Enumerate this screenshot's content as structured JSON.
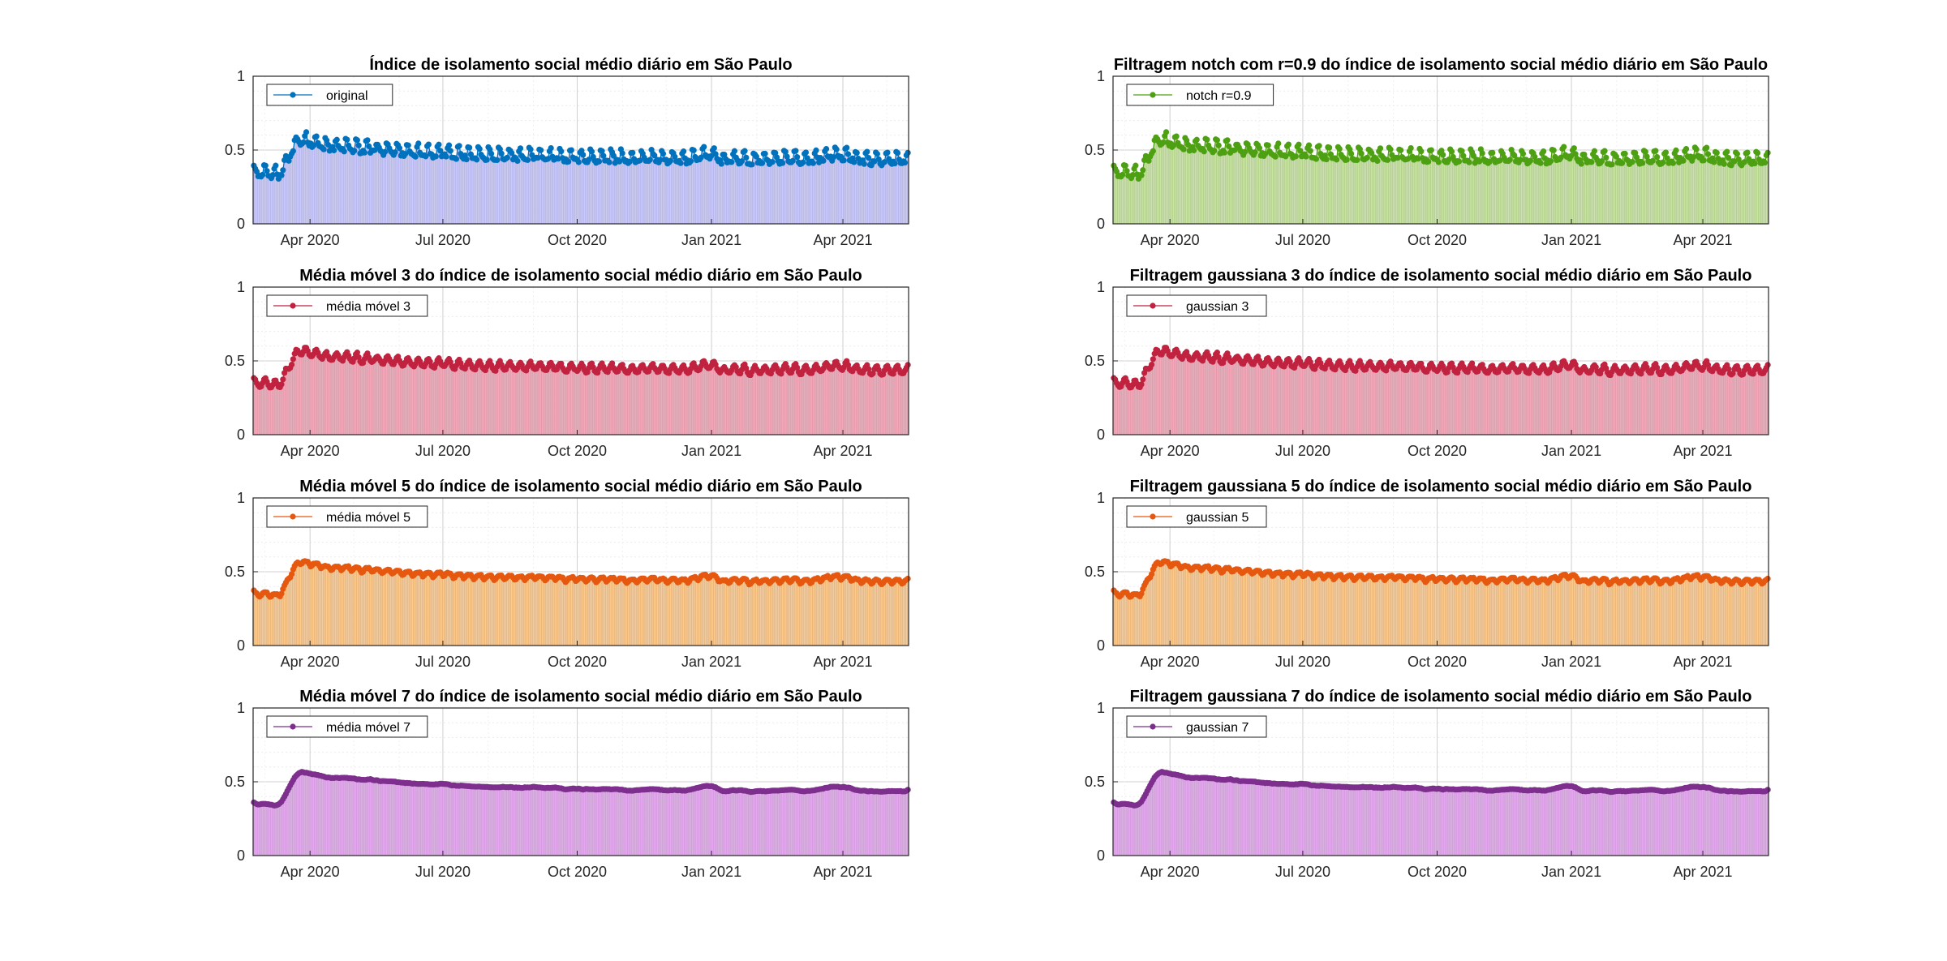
{
  "chart_data": [
    {
      "type": "line",
      "title": "Índice de isolamento social médio diário em São Paulo",
      "series": [
        {
          "name": "original",
          "mode": "raw",
          "color": "#0072BD",
          "fill": "#C9C9FF"
        }
      ],
      "x_range": [
        "2020-02-22",
        "2021-05-16"
      ],
      "x_ticks": [
        "Apr 2020",
        "Jul 2020",
        "Oct 2020",
        "Jan 2021",
        "Apr 2021"
      ],
      "ylim": [
        0,
        1
      ],
      "y_ticks": [
        "0",
        "0.5",
        "1"
      ],
      "grid": true,
      "legend": "top-left"
    },
    {
      "type": "line",
      "title": "Filtragem notch com r=0.9 do índice de isolamento social médio diário em São Paulo",
      "series": [
        {
          "name": "notch r=0.9",
          "mode": "raw",
          "color": "#4DA012",
          "fill": "#C7E59F"
        }
      ],
      "x_range": [
        "2020-02-22",
        "2021-05-16"
      ],
      "x_ticks": [
        "Apr 2020",
        "Jul 2020",
        "Oct 2020",
        "Jan 2021",
        "Apr 2021"
      ],
      "ylim": [
        0,
        1
      ],
      "y_ticks": [
        "0",
        "0.5",
        "1"
      ],
      "grid": true,
      "legend": "top-left"
    },
    {
      "type": "line",
      "title": "Média móvel 3 do índice de isolamento social médio diário em São Paulo",
      "series": [
        {
          "name": "média móvel 3",
          "mode": "ma3",
          "color": "#C0223F",
          "fill": "#F4A7B9"
        }
      ],
      "x_range": [
        "2020-02-22",
        "2021-05-16"
      ],
      "x_ticks": [
        "Apr 2020",
        "Jul 2020",
        "Oct 2020",
        "Jan 2021",
        "Apr 2021"
      ],
      "ylim": [
        0,
        1
      ],
      "y_ticks": [
        "0",
        "0.5",
        "1"
      ],
      "grid": true,
      "legend": "top-left"
    },
    {
      "type": "line",
      "title": "Filtragem gaussiana 3 do índice de isolamento social médio diário em São Paulo",
      "series": [
        {
          "name": "gaussian 3",
          "mode": "ma3",
          "color": "#C0223F",
          "fill": "#F4A7B9"
        }
      ],
      "x_range": [
        "2020-02-22",
        "2021-05-16"
      ],
      "x_ticks": [
        "Apr 2020",
        "Jul 2020",
        "Oct 2020",
        "Jan 2021",
        "Apr 2021"
      ],
      "ylim": [
        0,
        1
      ],
      "y_ticks": [
        "0",
        "0.5",
        "1"
      ],
      "grid": true,
      "legend": "top-left"
    },
    {
      "type": "line",
      "title": "Média móvel 5 do índice de isolamento social médio diário em São Paulo",
      "series": [
        {
          "name": "média móvel 5",
          "mode": "ma5",
          "color": "#E6580F",
          "fill": "#FFC98A"
        }
      ],
      "x_range": [
        "2020-02-22",
        "2021-05-16"
      ],
      "x_ticks": [
        "Apr 2020",
        "Jul 2020",
        "Oct 2020",
        "Jan 2021",
        "Apr 2021"
      ],
      "ylim": [
        0,
        1
      ],
      "y_ticks": [
        "0",
        "0.5",
        "1"
      ],
      "grid": true,
      "legend": "top-left"
    },
    {
      "type": "line",
      "title": "Filtragem gaussiana 5 do índice de isolamento social médio diário em São Paulo",
      "series": [
        {
          "name": "gaussian 5",
          "mode": "ma5",
          "color": "#E6580F",
          "fill": "#FFC98A"
        }
      ],
      "x_range": [
        "2020-02-22",
        "2021-05-16"
      ],
      "x_ticks": [
        "Apr 2020",
        "Jul 2020",
        "Oct 2020",
        "Jan 2021",
        "Apr 2021"
      ],
      "ylim": [
        0,
        1
      ],
      "y_ticks": [
        "0",
        "0.5",
        "1"
      ],
      "grid": true,
      "legend": "top-left"
    },
    {
      "type": "line",
      "title": "Média móvel 7 do índice de isolamento social médio diário em São Paulo",
      "series": [
        {
          "name": "média móvel 7",
          "mode": "ma7",
          "color": "#7E2F8E",
          "fill": "#E5A8F0"
        }
      ],
      "x_range": [
        "2020-02-22",
        "2021-05-16"
      ],
      "x_ticks": [
        "Apr 2020",
        "Jul 2020",
        "Oct 2020",
        "Jan 2021",
        "Apr 2021"
      ],
      "ylim": [
        0,
        1
      ],
      "y_ticks": [
        "0",
        "0.5",
        "1"
      ],
      "grid": true,
      "legend": "top-left"
    },
    {
      "type": "line",
      "title": "Filtragem gaussiana 7 do índice de isolamento social médio diário em São Paulo",
      "series": [
        {
          "name": "gaussian 7",
          "mode": "ma7",
          "color": "#7E2F8E",
          "fill": "#E5A8F0"
        }
      ],
      "x_range": [
        "2020-02-22",
        "2021-05-16"
      ],
      "x_ticks": [
        "Apr 2020",
        "Jul 2020",
        "Oct 2020",
        "Jan 2021",
        "Apr 2021"
      ],
      "ylim": [
        0,
        1
      ],
      "y_ticks": [
        "0",
        "0.5",
        "1"
      ],
      "grid": true,
      "legend": "top-left"
    }
  ]
}
